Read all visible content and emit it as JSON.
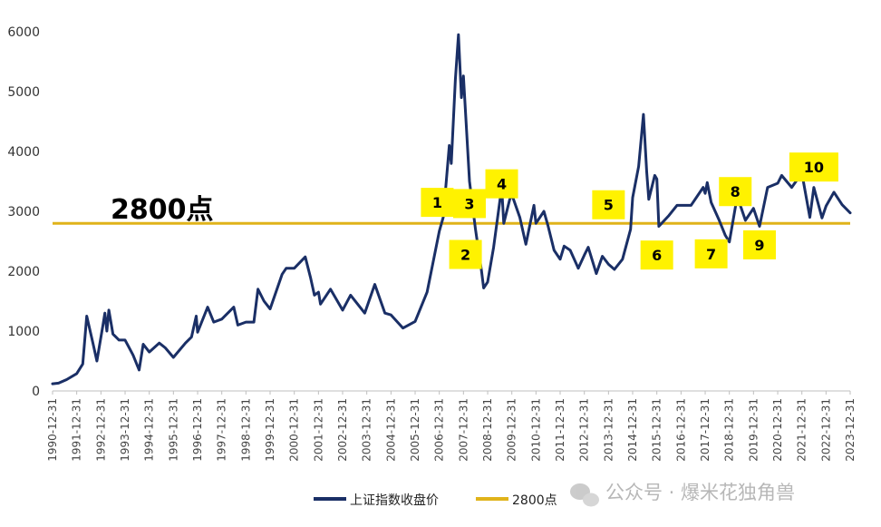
{
  "chart_data": {
    "type": "line",
    "xlabel": "",
    "ylabel": "",
    "ylim": [
      0,
      6000
    ],
    "yticks": [
      0,
      1000,
      2000,
      3000,
      4000,
      5000,
      6000
    ],
    "x_tick_labels": [
      "1990-12-31",
      "1991-12-31",
      "1992-12-31",
      "1993-12-31",
      "1994-12-31",
      "1995-12-31",
      "1996-12-31",
      "1997-12-31",
      "1998-12-31",
      "1999-12-31",
      "2000-12-31",
      "2001-12-31",
      "2002-12-31",
      "2003-12-31",
      "2004-12-31",
      "2005-12-31",
      "2006-12-31",
      "2007-12-31",
      "2008-12-31",
      "2009-12-31",
      "2010-12-31",
      "2011-12-31",
      "2012-12-31",
      "2013-12-31",
      "2014-12-31",
      "2015-12-31",
      "2016-12-31",
      "2017-12-31",
      "2018-12-31",
      "2019-12-31",
      "2020-12-31",
      "2021-12-31",
      "2022-12-31",
      "2023-12-31"
    ],
    "series": [
      {
        "name": "上证指数收盘价",
        "color": "#1a2f66",
        "points": [
          [
            "1990-12-31",
            120
          ],
          [
            "1991-03-31",
            130
          ],
          [
            "1991-07-31",
            190
          ],
          [
            "1991-12-31",
            290
          ],
          [
            "1992-03-31",
            450
          ],
          [
            "1992-05-31",
            1250
          ],
          [
            "1992-08-31",
            800
          ],
          [
            "1992-10-31",
            500
          ],
          [
            "1993-01-31",
            1100
          ],
          [
            "1993-02-28",
            1300
          ],
          [
            "1993-03-31",
            1000
          ],
          [
            "1993-04-30",
            1350
          ],
          [
            "1993-06-30",
            950
          ],
          [
            "1993-09-30",
            850
          ],
          [
            "1993-12-31",
            850
          ],
          [
            "1994-04-30",
            600
          ],
          [
            "1994-07-31",
            350
          ],
          [
            "1994-09-30",
            780
          ],
          [
            "1994-12-31",
            650
          ],
          [
            "1995-05-31",
            800
          ],
          [
            "1995-08-31",
            720
          ],
          [
            "1995-12-31",
            560
          ],
          [
            "1996-06-30",
            800
          ],
          [
            "1996-09-30",
            900
          ],
          [
            "1996-12-10",
            1250
          ],
          [
            "1996-12-31",
            980
          ],
          [
            "1997-05-31",
            1400
          ],
          [
            "1997-08-31",
            1150
          ],
          [
            "1997-12-31",
            1200
          ],
          [
            "1998-03-31",
            1300
          ],
          [
            "1998-06-30",
            1400
          ],
          [
            "1998-08-31",
            1100
          ],
          [
            "1998-12-31",
            1150
          ],
          [
            "1999-04-30",
            1150
          ],
          [
            "1999-06-30",
            1700
          ],
          [
            "1999-09-30",
            1500
          ],
          [
            "1999-12-31",
            1370
          ],
          [
            "2000-06-30",
            1950
          ],
          [
            "2000-08-31",
            2050
          ],
          [
            "2000-12-31",
            2050
          ],
          [
            "2001-06-14",
            2240
          ],
          [
            "2001-08-31",
            1900
          ],
          [
            "2001-10-31",
            1600
          ],
          [
            "2001-12-31",
            1650
          ],
          [
            "2002-01-31",
            1450
          ],
          [
            "2002-06-30",
            1700
          ],
          [
            "2002-12-31",
            1350
          ],
          [
            "2003-04-30",
            1600
          ],
          [
            "2003-11-30",
            1300
          ],
          [
            "2004-04-30",
            1780
          ],
          [
            "2004-09-30",
            1300
          ],
          [
            "2004-12-31",
            1270
          ],
          [
            "2005-06-30",
            1050
          ],
          [
            "2005-12-31",
            1160
          ],
          [
            "2006-06-30",
            1650
          ],
          [
            "2006-12-31",
            2670
          ],
          [
            "2007-02-28",
            2900
          ],
          [
            "2007-05-31",
            4100
          ],
          [
            "2007-06-30",
            3800
          ],
          [
            "2007-08-31",
            5200
          ],
          [
            "2007-10-16",
            5950
          ],
          [
            "2007-11-30",
            4900
          ],
          [
            "2007-12-31",
            5260
          ],
          [
            "2008-03-31",
            3500
          ],
          [
            "2008-06-30",
            2700
          ],
          [
            "2008-09-30",
            2000
          ],
          [
            "2008-10-31",
            1720
          ],
          [
            "2008-12-31",
            1820
          ],
          [
            "2009-03-31",
            2400
          ],
          [
            "2009-07-31",
            3400
          ],
          [
            "2009-08-31",
            2800
          ],
          [
            "2009-11-30",
            3200
          ],
          [
            "2009-12-31",
            3280
          ],
          [
            "2010-04-30",
            2900
          ],
          [
            "2010-07-31",
            2450
          ],
          [
            "2010-11-30",
            3100
          ],
          [
            "2010-12-31",
            2800
          ],
          [
            "2011-04-30",
            3000
          ],
          [
            "2011-06-30",
            2760
          ],
          [
            "2011-09-30",
            2350
          ],
          [
            "2011-12-31",
            2200
          ],
          [
            "2012-02-29",
            2420
          ],
          [
            "2012-05-31",
            2350
          ],
          [
            "2012-09-30",
            2050
          ],
          [
            "2012-12-31",
            2270
          ],
          [
            "2013-02-28",
            2400
          ],
          [
            "2013-06-30",
            1960
          ],
          [
            "2013-09-30",
            2250
          ],
          [
            "2013-12-31",
            2115
          ],
          [
            "2014-03-31",
            2030
          ],
          [
            "2014-07-31",
            2200
          ],
          [
            "2014-11-30",
            2700
          ],
          [
            "2014-12-31",
            3230
          ],
          [
            "2015-03-31",
            3750
          ],
          [
            "2015-06-12",
            4620
          ],
          [
            "2015-07-31",
            3660
          ],
          [
            "2015-08-31",
            3200
          ],
          [
            "2015-11-30",
            3600
          ],
          [
            "2015-12-31",
            3540
          ],
          [
            "2016-01-31",
            2750
          ],
          [
            "2016-06-30",
            2930
          ],
          [
            "2016-10-31",
            3100
          ],
          [
            "2016-12-31",
            3100
          ],
          [
            "2017-05-31",
            3100
          ],
          [
            "2017-11-30",
            3400
          ],
          [
            "2017-12-31",
            3300
          ],
          [
            "2018-01-31",
            3480
          ],
          [
            "2018-03-31",
            3150
          ],
          [
            "2018-07-31",
            2850
          ],
          [
            "2018-10-31",
            2600
          ],
          [
            "2018-12-31",
            2490
          ],
          [
            "2019-04-30",
            3250
          ],
          [
            "2019-08-31",
            2850
          ],
          [
            "2019-12-31",
            3050
          ],
          [
            "2020-03-31",
            2750
          ],
          [
            "2020-07-31",
            3400
          ],
          [
            "2020-12-31",
            3470
          ],
          [
            "2021-02-28",
            3600
          ],
          [
            "2021-07-31",
            3400
          ],
          [
            "2021-12-31",
            3640
          ],
          [
            "2022-04-30",
            2900
          ],
          [
            "2022-06-30",
            3400
          ],
          [
            "2022-10-31",
            2890
          ],
          [
            "2022-12-31",
            3090
          ],
          [
            "2023-04-30",
            3320
          ],
          [
            "2023-08-31",
            3110
          ],
          [
            "2023-12-31",
            2975
          ]
        ]
      },
      {
        "name": "2800点",
        "color": "#e0b31a",
        "value": 2800
      }
    ],
    "reference_line": {
      "value": 2800,
      "label": "2800点"
    },
    "markers": [
      {
        "label": "1",
        "x": "2006-11-30",
        "y": 3150
      },
      {
        "label": "2",
        "x": "2008-01-31",
        "y": 2280
      },
      {
        "label": "3",
        "x": "2008-03-31",
        "y": 3130
      },
      {
        "label": "4",
        "x": "2009-07-31",
        "y": 3460
      },
      {
        "label": "5",
        "x": "2013-12-31",
        "y": 3110
      },
      {
        "label": "6",
        "x": "2015-12-31",
        "y": 2270
      },
      {
        "label": "7",
        "x": "2018-03-31",
        "y": 2290
      },
      {
        "label": "8",
        "x": "2019-03-31",
        "y": 3330
      },
      {
        "label": "9",
        "x": "2020-03-31",
        "y": 2440
      },
      {
        "label": "10",
        "x": "2022-06-30",
        "y": 3740
      }
    ],
    "legend": {
      "placement": "bottom"
    },
    "grid": false
  },
  "watermark": {
    "text": "公众号 · 爆米花独角兽"
  }
}
